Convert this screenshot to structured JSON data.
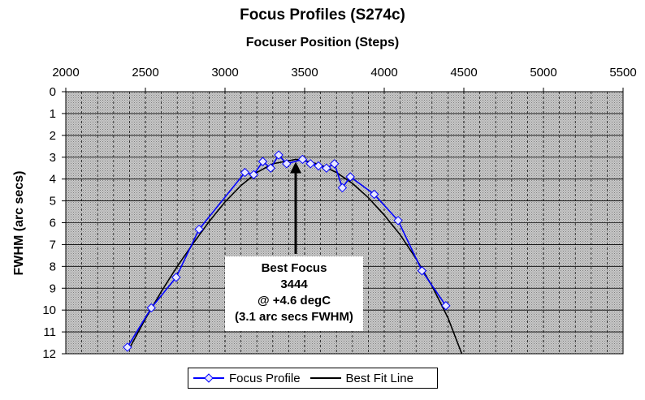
{
  "chart_data": {
    "type": "line",
    "title": "Focus Profiles (S274c)",
    "xlabel": "Focuser Position (Steps)",
    "ylabel": "FWHM (arc secs)",
    "xlim": [
      2000,
      5500
    ],
    "ylim": [
      0,
      12
    ],
    "y_inverted": true,
    "x_axis_position": "top",
    "x_ticks": [
      2000,
      2500,
      3000,
      3500,
      4000,
      4500,
      5000,
      5500
    ],
    "y_ticks": [
      0,
      1,
      2,
      3,
      4,
      5,
      6,
      7,
      8,
      9,
      10,
      11,
      12
    ],
    "grid": true,
    "legend_position": "bottom",
    "series": [
      {
        "name": "Focus Profile",
        "color": "#0000ff",
        "marker": "diamond",
        "x": [
          2387,
          2537,
          2693,
          2837,
          3125,
          3180,
          3237,
          3287,
          3337,
          3387,
          3487,
          3537,
          3587,
          3637,
          3687,
          3737,
          3787,
          3937,
          4087,
          4237,
          4387
        ],
        "y": [
          11.7,
          9.9,
          8.5,
          6.3,
          3.7,
          3.8,
          3.2,
          3.5,
          2.9,
          3.3,
          3.1,
          3.3,
          3.4,
          3.5,
          3.3,
          4.4,
          3.9,
          4.7,
          5.9,
          8.2,
          9.8
        ]
      },
      {
        "name": "Best Fit Line",
        "color": "#000000",
        "marker": "none",
        "x": [
          2400,
          2500,
          2600,
          2700,
          2800,
          2900,
          3000,
          3100,
          3200,
          3300,
          3444,
          3500,
          3600,
          3700,
          3800,
          3900,
          4000,
          4100,
          4200,
          4300,
          4400,
          4487
        ],
        "y": [
          11.75,
          10.4,
          9.15,
          8.0,
          6.95,
          5.95,
          5.05,
          4.3,
          3.7,
          3.3,
          3.1,
          3.15,
          3.35,
          3.7,
          4.2,
          4.85,
          5.65,
          6.55,
          7.65,
          8.9,
          10.35,
          12.0
        ]
      }
    ],
    "annotation": {
      "lines": [
        "Best Focus",
        "3444",
        "@ +4.6 degC",
        "(3.1 arc secs FWHM)"
      ],
      "arrow_to": {
        "x": 3444,
        "y": 3.1
      }
    }
  }
}
